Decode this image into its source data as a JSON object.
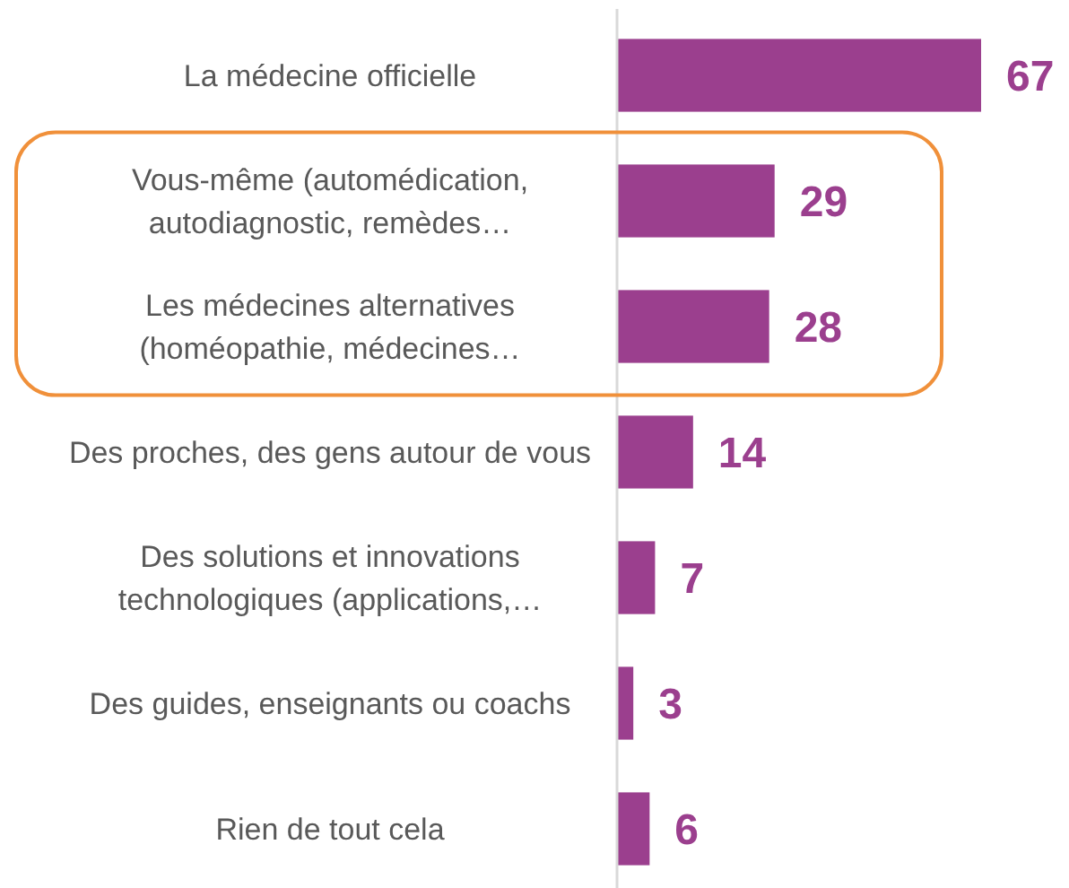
{
  "chart_data": {
    "type": "bar",
    "orientation": "horizontal",
    "categories": [
      "La médecine officielle",
      "Vous-même (automédication, autodiagnostic, remèdes…",
      "Les médecines alternatives (homéopathie, médecines…",
      "Des proches, des gens autour de vous",
      "Des solutions et innovations technologiques (applications,…",
      "Des guides, enseignants ou coachs",
      "Rien de tout cela"
    ],
    "values": [
      67,
      29,
      28,
      14,
      7,
      3,
      6
    ],
    "color": "#9b3f8e",
    "data_labels": true
  }
}
